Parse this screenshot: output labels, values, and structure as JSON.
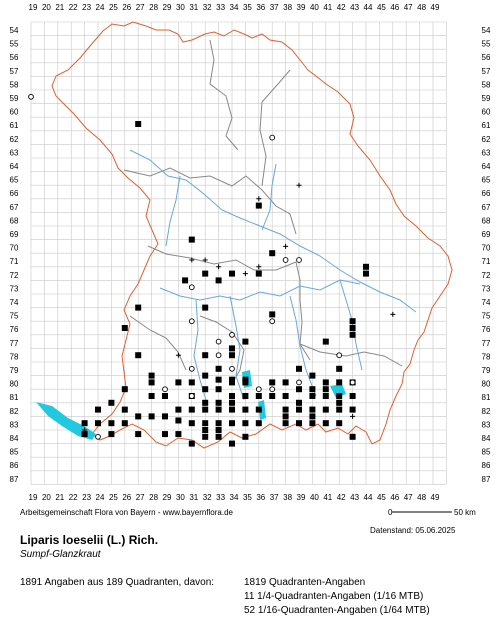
{
  "grid": {
    "x_labels": [
      "19",
      "20",
      "21",
      "22",
      "23",
      "24",
      "25",
      "26",
      "27",
      "28",
      "29",
      "30",
      "31",
      "32",
      "33",
      "34",
      "35",
      "36",
      "37",
      "38",
      "39",
      "40",
      "41",
      "42",
      "43",
      "44",
      "45",
      "46",
      "47",
      "48",
      "49"
    ],
    "y_labels": [
      "54",
      "55",
      "56",
      "57",
      "58",
      "59",
      "60",
      "61",
      "62",
      "63",
      "64",
      "65",
      "66",
      "67",
      "68",
      "69",
      "70",
      "71",
      "72",
      "73",
      "74",
      "75",
      "76",
      "77",
      "78",
      "79",
      "80",
      "81",
      "82",
      "83",
      "84",
      "85",
      "86",
      "87"
    ]
  },
  "colors": {
    "grid": "#c8c8c8",
    "border_state": "#e06030",
    "border_region": "#888888",
    "water": "#6aa8d8",
    "lake": "#22c8e0",
    "marker": "#000000"
  },
  "markers": {
    "filled": [
      [
        27,
        61
      ],
      [
        31,
        69.5
      ],
      [
        32,
        72
      ],
      [
        34,
        72
      ],
      [
        36,
        67
      ],
      [
        37,
        70.5
      ],
      [
        44,
        71.5
      ],
      [
        44,
        72
      ],
      [
        30.5,
        72.5
      ],
      [
        33,
        72.5
      ],
      [
        36,
        72
      ],
      [
        27,
        74.5
      ],
      [
        32,
        74.5
      ],
      [
        37,
        75
      ],
      [
        26,
        76
      ],
      [
        43,
        75.5
      ],
      [
        43,
        76
      ],
      [
        43,
        76.5
      ],
      [
        34,
        78
      ],
      [
        27,
        78
      ],
      [
        32,
        78
      ],
      [
        35,
        77
      ],
      [
        41,
        77
      ],
      [
        34,
        77.5
      ],
      [
        28,
        79.5
      ],
      [
        32,
        79.5
      ],
      [
        33,
        79
      ],
      [
        42,
        79
      ],
      [
        28,
        80
      ],
      [
        30,
        80
      ],
      [
        31,
        80
      ],
      [
        34,
        80
      ],
      [
        35,
        80
      ],
      [
        37,
        80
      ],
      [
        38,
        80
      ],
      [
        39,
        79
      ],
      [
        40,
        79.5
      ],
      [
        41,
        80
      ],
      [
        42,
        80
      ],
      [
        43,
        80
      ],
      [
        25,
        81.5
      ],
      [
        28,
        81
      ],
      [
        29,
        81
      ],
      [
        31,
        81
      ],
      [
        32,
        80.5
      ],
      [
        33,
        80.5
      ],
      [
        34,
        81
      ],
      [
        35,
        81
      ],
      [
        36,
        81
      ],
      [
        37,
        81
      ],
      [
        38,
        81
      ],
      [
        39,
        80.5
      ],
      [
        40,
        81
      ],
      [
        41,
        81
      ],
      [
        42,
        81
      ],
      [
        43,
        81
      ],
      [
        24,
        82
      ],
      [
        26,
        82
      ],
      [
        27,
        82.5
      ],
      [
        29,
        82.5
      ],
      [
        31,
        82
      ],
      [
        32,
        82
      ],
      [
        33,
        82
      ],
      [
        34,
        82
      ],
      [
        35,
        82
      ],
      [
        36,
        82
      ],
      [
        38,
        82
      ],
      [
        39,
        82
      ],
      [
        40,
        82
      ],
      [
        41,
        82
      ],
      [
        42,
        82
      ],
      [
        43,
        82
      ],
      [
        23,
        83
      ],
      [
        24,
        83
      ],
      [
        25,
        83
      ],
      [
        26,
        83
      ],
      [
        28,
        82.5
      ],
      [
        31,
        83
      ],
      [
        32,
        83
      ],
      [
        33,
        83
      ],
      [
        34,
        83
      ],
      [
        35,
        83
      ],
      [
        36,
        83
      ],
      [
        38,
        83
      ],
      [
        39,
        83
      ],
      [
        40,
        83
      ],
      [
        41,
        83
      ],
      [
        42,
        83
      ],
      [
        23,
        83.8
      ],
      [
        25,
        83.8
      ],
      [
        27,
        83.8
      ],
      [
        29,
        83.8
      ],
      [
        30,
        83.8
      ],
      [
        31,
        84.5
      ],
      [
        32,
        84
      ],
      [
        33,
        84
      ],
      [
        34,
        84.5
      ],
      [
        43,
        84
      ],
      [
        35,
        84
      ],
      [
        33,
        81.5
      ],
      [
        34,
        81.5
      ],
      [
        32,
        81.5
      ],
      [
        38,
        82.5
      ],
      [
        40,
        82.5
      ],
      [
        33,
        79.8
      ],
      [
        34,
        79.8
      ],
      [
        35,
        79.8
      ],
      [
        32,
        83.5
      ],
      [
        33,
        83.5
      ],
      [
        40,
        80.5
      ],
      [
        41,
        80.5
      ],
      [
        39,
        81.5
      ],
      [
        42,
        81.5
      ],
      [
        30,
        82
      ],
      [
        30,
        82.8
      ],
      [
        26,
        80.5
      ]
    ],
    "open": [
      [
        19,
        59
      ],
      [
        37,
        62
      ],
      [
        31,
        75.5
      ],
      [
        33,
        77
      ],
      [
        34,
        76.5
      ],
      [
        37,
        75.5
      ],
      [
        38,
        71
      ],
      [
        39,
        71
      ],
      [
        31,
        73
      ],
      [
        34,
        79
      ],
      [
        31,
        79
      ],
      [
        39,
        80
      ],
      [
        42,
        78
      ],
      [
        31,
        81
      ],
      [
        36,
        80.5
      ],
      [
        37,
        80.5
      ],
      [
        29,
        80.5
      ],
      [
        43,
        80
      ],
      [
        24,
        84
      ],
      [
        33,
        78
      ]
    ],
    "plus": [
      [
        31,
        71
      ],
      [
        32,
        71
      ],
      [
        33,
        71.5
      ],
      [
        35,
        72
      ],
      [
        38,
        70
      ],
      [
        39,
        65.5
      ],
      [
        36,
        66.5
      ],
      [
        46,
        75
      ],
      [
        30,
        78
      ],
      [
        23,
        83.5
      ],
      [
        43,
        82.5
      ],
      [
        36,
        71.5
      ]
    ]
  },
  "footer": {
    "credit": "Arbeitsgemeinschaft Flora von Bayern - www.bayernflora.de",
    "scale_start": "0",
    "scale_end": "50 km",
    "date": "Datenstand: 05.06.2025",
    "species": "Liparis loeselii (L.) Rich.",
    "common_name": "Sumpf-Glanzkraut",
    "stats_summary": "1891 Angaben aus 189 Quadranten, davon:",
    "stats_quadrants": "1819 Quadranten-Angaben",
    "stats_quarter": "11 1/4-Quadranten-Angaben (1/16 MTB)",
    "stats_sixteenth": "52 1/16-Quadranten-Angaben (1/64 MTB)"
  }
}
